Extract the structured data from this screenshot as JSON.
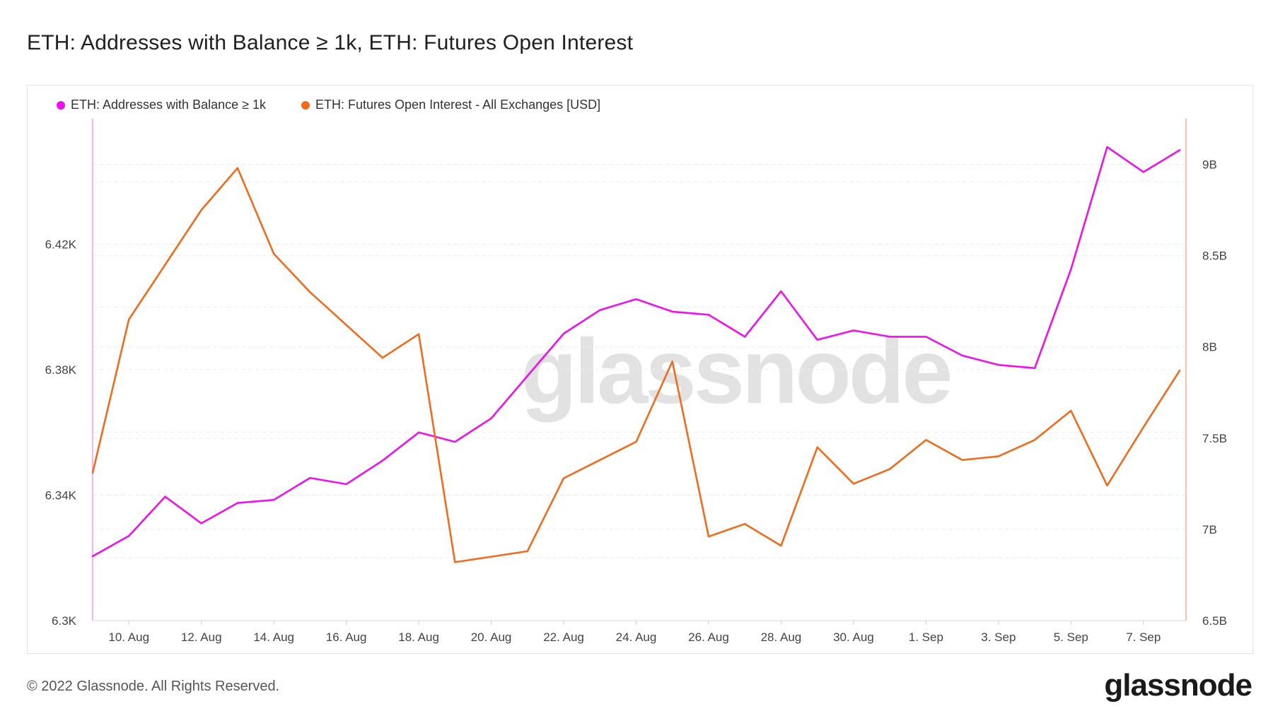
{
  "page": {
    "title": "ETH: Addresses with Balance ≥ 1k, ETH: Futures Open Interest",
    "copyright": "© 2022 Glassnode. All Rights Reserved.",
    "logo_text": "glassnode",
    "watermark": "glassnode"
  },
  "chart_data": {
    "type": "line",
    "x": [
      "9 Aug",
      "10 Aug",
      "11 Aug",
      "12 Aug",
      "13 Aug",
      "14 Aug",
      "15 Aug",
      "16 Aug",
      "17 Aug",
      "18 Aug",
      "19 Aug",
      "20 Aug",
      "21 Aug",
      "22 Aug",
      "23 Aug",
      "24 Aug",
      "25 Aug",
      "26 Aug",
      "27 Aug",
      "28 Aug",
      "29 Aug",
      "30 Aug",
      "31 Aug",
      "1 Sep",
      "2 Sep",
      "3 Sep",
      "4 Sep",
      "5 Sep",
      "6 Sep",
      "7 Sep",
      "8 Sep"
    ],
    "x_ticks": [
      {
        "label": "10. Aug",
        "index": 1
      },
      {
        "label": "12. Aug",
        "index": 3
      },
      {
        "label": "14. Aug",
        "index": 5
      },
      {
        "label": "16. Aug",
        "index": 7
      },
      {
        "label": "18. Aug",
        "index": 9
      },
      {
        "label": "20. Aug",
        "index": 11
      },
      {
        "label": "22. Aug",
        "index": 13
      },
      {
        "label": "24. Aug",
        "index": 15
      },
      {
        "label": "26. Aug",
        "index": 17
      },
      {
        "label": "28. Aug",
        "index": 19
      },
      {
        "label": "30. Aug",
        "index": 21
      },
      {
        "label": "1. Sep",
        "index": 23
      },
      {
        "label": "3. Sep",
        "index": 25
      },
      {
        "label": "5. Sep",
        "index": 27
      },
      {
        "label": "7. Sep",
        "index": 29
      }
    ],
    "y_left": {
      "min": 6300,
      "max": 6460,
      "ticks": [
        {
          "value": 6300,
          "label": "6.3K"
        },
        {
          "value": 6340,
          "label": "6.34K"
        },
        {
          "value": 6380,
          "label": "6.38K"
        },
        {
          "value": 6420,
          "label": "6.42K"
        }
      ]
    },
    "y_right": {
      "min": 6500000000,
      "max": 9250000000,
      "ticks": [
        {
          "value": 6500000000,
          "label": "6.5B"
        },
        {
          "value": 7000000000,
          "label": "7B"
        },
        {
          "value": 7500000000,
          "label": "7.5B"
        },
        {
          "value": 8000000000,
          "label": "8B"
        },
        {
          "value": 8500000000,
          "label": "8.5B"
        },
        {
          "value": 9000000000,
          "label": "9B"
        }
      ]
    },
    "series": [
      {
        "name": "ETH: Addresses with Balance ≥ 1k",
        "axis": "left",
        "color": "#ee11ee",
        "values": [
          6320.5,
          6327,
          6339.5,
          6331,
          6337.5,
          6338.5,
          6345.5,
          6343.5,
          6351,
          6360,
          6357,
          6364.5,
          6378,
          6391.5,
          6399,
          6402.5,
          6398.5,
          6397.5,
          6390.5,
          6405,
          6389.5,
          6392.5,
          6390.5,
          6390.5,
          6384.5,
          6381.5,
          6380.5,
          6412,
          6451,
          6443,
          6450
        ]
      },
      {
        "name": "ETH: Futures Open Interest - All Exchanges [USD]",
        "axis": "right",
        "color": "#f26a1b",
        "values": [
          7310000000,
          8150000000,
          8450000000,
          8750000000,
          8980000000,
          8510000000,
          8300000000,
          8120000000,
          7940000000,
          8070000000,
          6820000000,
          6850000000,
          6880000000,
          7280000000,
          7380000000,
          7480000000,
          7920000000,
          6960000000,
          7030000000,
          6910000000,
          7450000000,
          7250000000,
          7330000000,
          7490000000,
          7380000000,
          7400000000,
          7490000000,
          7650000000,
          7240000000,
          7560000000,
          7870000000
        ]
      }
    ]
  }
}
